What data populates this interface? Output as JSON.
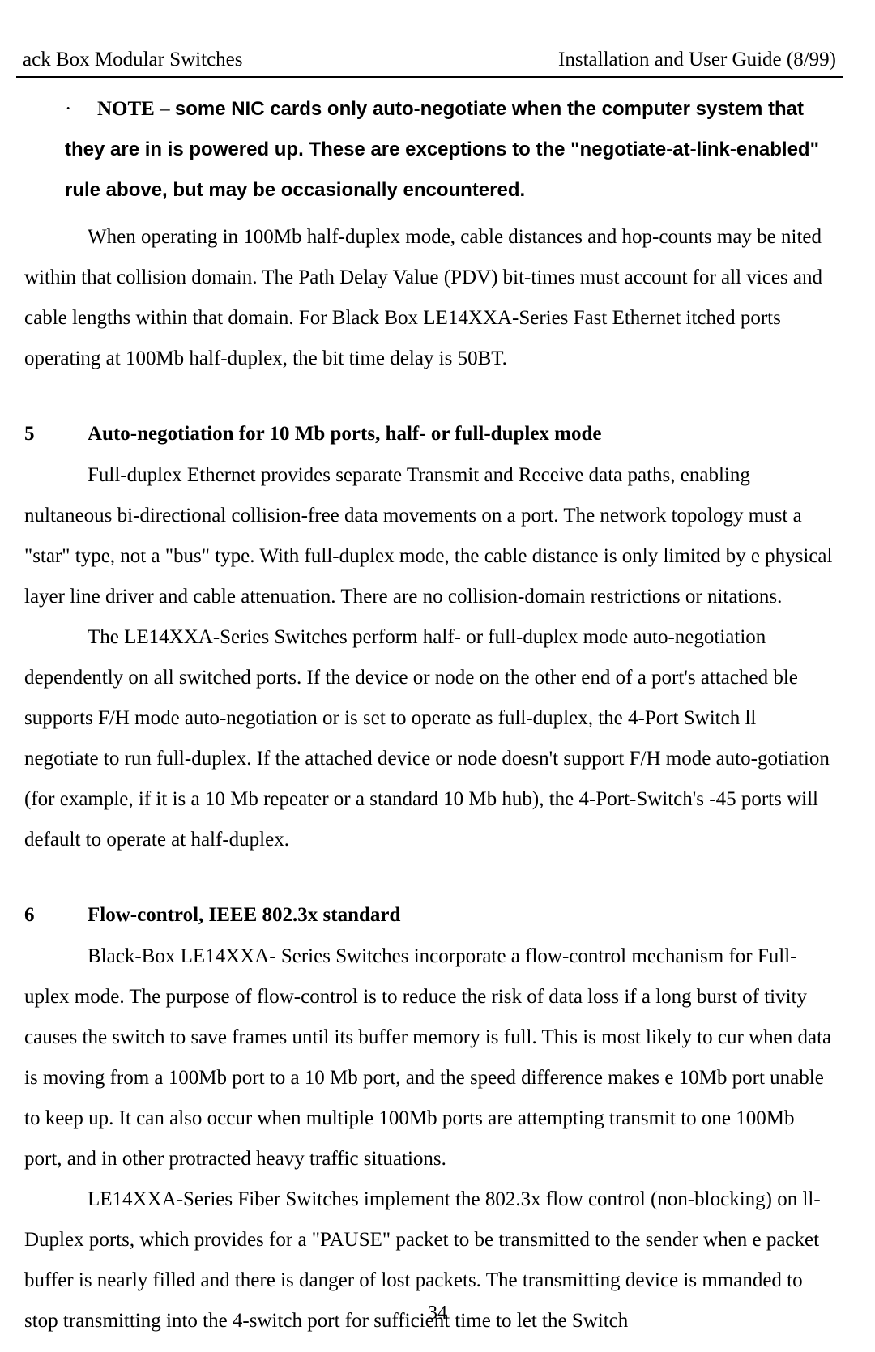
{
  "header": {
    "left": "ack Box Modular Switches",
    "right": "Installation and User Guide (8/99)"
  },
  "note": {
    "bullet": "·",
    "label": "NOTE",
    "dash": " – ",
    "body": "some NIC cards only auto-negotiate when the computer system that they are in is powered up.  These are exceptions to the \"negotiate-at-link-enabled\" rule above, but may be occasionally encountered."
  },
  "para1": "When operating in 100Mb half-duplex mode, cable distances and hop-counts may be nited within that collision domain. The Path Delay Value (PDV) bit-times must account for all vices and cable lengths within that domain. For Black Box LE14XXA-Series Fast Ethernet itched ports operating at 100Mb half-duplex, the bit time delay is 50BT.",
  "section5": {
    "num": "5",
    "title": "Auto-negotiation for 10 Mb ports, half- or full-duplex mode"
  },
  "para2": "Full-duplex Ethernet provides separate Transmit and Receive data paths, enabling nultaneous bi-directional collision-free data movements on a port.  The network topology must  a \"star\" type, not a \"bus\" type.  With full-duplex mode, the cable distance is only limited by e physical layer line driver and cable attenuation. There are no collision-domain restrictions or nitations.",
  "para3": "The LE14XXA-Series Switches perform half- or full-duplex mode auto-negotiation dependently on all switched ports. If the device or node on the other end of a port's attached ble supports F/H mode auto-negotiation or is set to operate as full-duplex, the 4-Port Switch ll negotiate to run full-duplex. If the attached device or node doesn't support F/H mode auto-gotiation (for example, if it is a 10 Mb repeater or a standard 10 Mb hub), the 4-Port-Switch's -45  ports will default to operate at half-duplex.",
  "section6": {
    "num": "6",
    "title": "Flow-control, IEEE 802.3x standard"
  },
  "para4": " Black-Box LE14XXA- Series Switches incorporate a flow-control mechanism for Full-uplex mode. The purpose of flow-control is to reduce the risk of data loss if a long burst of tivity causes the switch to save frames until its buffer memory is full. This is most likely to cur when data is moving from a 100Mb port to a 10 Mb port, and the speed difference makes e 10Mb port unable to keep up. It can also occur when multiple 100Mb ports are attempting  transmit to one 100Mb port, and in other protracted heavy traffic situations.",
  "para5": "LE14XXA-Series Fiber Switches implement the 802.3x flow control (non-blocking) on ll-Duplex ports, which provides for a \"PAUSE\" packet to be transmitted to the sender when e packet buffer is nearly filled and there is danger of lost packets. The transmitting device is mmanded to stop transmitting into the 4-switch port for sufficient time to let the Switch",
  "pageNumber": "34"
}
